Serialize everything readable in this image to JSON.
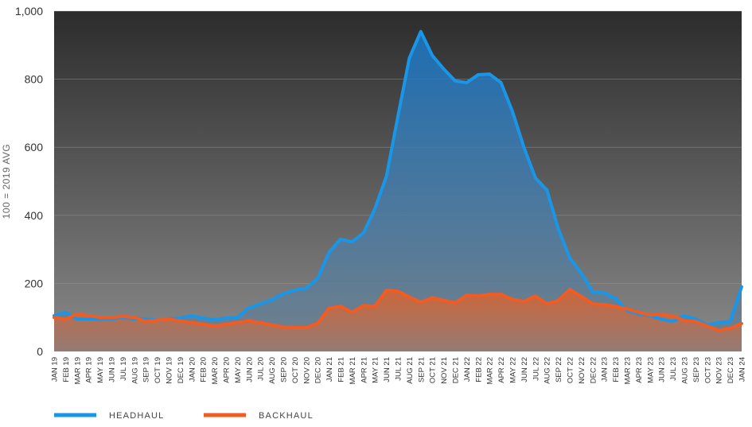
{
  "chart_data": {
    "type": "area",
    "ylabel": "100 = 2019 AVG",
    "ylim": [
      0,
      1000
    ],
    "yticks": [
      "0",
      "200",
      "400",
      "600",
      "800",
      "1,000"
    ],
    "yticks_values": [
      0,
      200,
      400,
      600,
      800,
      1000
    ],
    "grid": true,
    "legend_position": "bottom-left",
    "categories": [
      "JAN 19",
      "FEB 19",
      "MAR 19",
      "APR 19",
      "MAY 19",
      "JUN 19",
      "JUL 19",
      "AUG 19",
      "SEP 19",
      "OCT 19",
      "NOV 19",
      "DEC 19",
      "JAN 20",
      "FEB 20",
      "MAR 20",
      "APR 20",
      "MAY 20",
      "JUN 20",
      "JUL 20",
      "AUG 20",
      "SEP 20",
      "OCT 20",
      "NOV 20",
      "DEC 20",
      "JAN 21",
      "FEB 21",
      "MAR 21",
      "APR 21",
      "MAY 21",
      "JUN 21",
      "JUL 21",
      "AUG 21",
      "SEP 21",
      "OCT 21",
      "NOV 21",
      "DEC 21",
      "JAN 22",
      "FEB 22",
      "MAR 22",
      "APR 22",
      "MAY 22",
      "JUN 22",
      "JUL 22",
      "AUG 22",
      "SEP 22",
      "OCT 22",
      "NOV 22",
      "DEC 22",
      "JAN 23",
      "FEB 23",
      "MAR 23",
      "APR 23",
      "MAY 23",
      "JUN 23",
      "JUL 23",
      "AUG 23",
      "SEP 23",
      "OCT 23",
      "NOV 23",
      "DEC 23",
      "JAN 24"
    ],
    "series": [
      {
        "name": "HEADHAUL",
        "color": "#1a96e8",
        "values": [
          105,
          115,
          95,
          95,
          95,
          95,
          100,
          95,
          95,
          92,
          95,
          98,
          105,
          98,
          93,
          98,
          100,
          128,
          140,
          152,
          170,
          180,
          186,
          215,
          292,
          330,
          322,
          348,
          420,
          515,
          690,
          862,
          940,
          870,
          830,
          795,
          790,
          813,
          815,
          790,
          705,
          600,
          510,
          475,
          360,
          275,
          230,
          175,
          172,
          155,
          120,
          110,
          105,
          95,
          88,
          105,
          95,
          78,
          85,
          88,
          190
        ],
        "show_line": true
      },
      {
        "name": "BACKHAUL",
        "color": "#f25b22",
        "values": [
          100,
          95,
          110,
          105,
          100,
          100,
          103,
          100,
          88,
          92,
          95,
          90,
          85,
          80,
          75,
          80,
          85,
          90,
          85,
          78,
          72,
          70,
          70,
          83,
          127,
          133,
          115,
          135,
          133,
          180,
          177,
          160,
          145,
          158,
          150,
          143,
          165,
          163,
          168,
          168,
          153,
          147,
          163,
          140,
          150,
          182,
          162,
          140,
          138,
          132,
          125,
          115,
          107,
          108,
          105,
          90,
          88,
          75,
          62,
          68,
          82
        ],
        "show_line": true
      }
    ]
  }
}
